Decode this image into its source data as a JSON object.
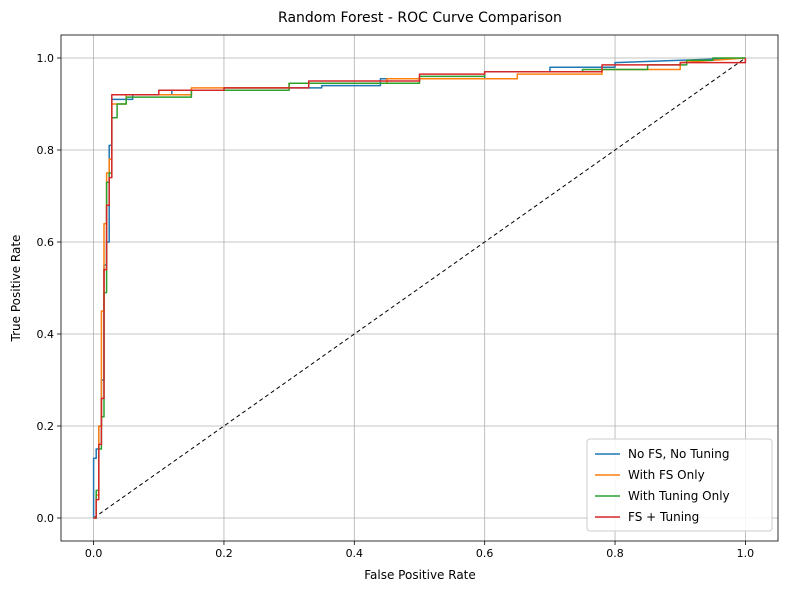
{
  "chart_data": {
    "type": "line",
    "title": "Random Forest - ROC Curve Comparison",
    "xlabel": "False Positive Rate",
    "ylabel": "True Positive Rate",
    "xlim": [
      -0.05,
      1.05
    ],
    "ylim": [
      -0.05,
      1.05
    ],
    "xticks": [
      "0.0",
      "0.2",
      "0.4",
      "0.6",
      "0.8",
      "1.0"
    ],
    "yticks": [
      "0.0",
      "0.2",
      "0.4",
      "0.6",
      "0.8",
      "1.0"
    ],
    "grid": true,
    "legend_position": "lower-right",
    "series": [
      {
        "name": "No FS, No Tuning",
        "color": "#1f77b4",
        "x": [
          0.0,
          0.0,
          0.004,
          0.004,
          0.008,
          0.008,
          0.012,
          0.012,
          0.016,
          0.016,
          0.02,
          0.02,
          0.024,
          0.024,
          0.028,
          0.028,
          0.06,
          0.06,
          0.12,
          0.12,
          0.2,
          0.2,
          0.35,
          0.35,
          0.44,
          0.44,
          0.6,
          0.6,
          0.7,
          0.7,
          0.8,
          0.8,
          1.0
        ],
        "y": [
          0.0,
          0.13,
          0.13,
          0.15,
          0.15,
          0.2,
          0.2,
          0.3,
          0.3,
          0.55,
          0.55,
          0.6,
          0.6,
          0.81,
          0.81,
          0.91,
          0.91,
          0.92,
          0.92,
          0.93,
          0.93,
          0.935,
          0.935,
          0.94,
          0.94,
          0.955,
          0.955,
          0.97,
          0.97,
          0.98,
          0.98,
          0.99,
          1.0
        ]
      },
      {
        "name": "With FS Only",
        "color": "#ff7f0e",
        "x": [
          0.0,
          0.004,
          0.004,
          0.008,
          0.008,
          0.012,
          0.012,
          0.016,
          0.016,
          0.02,
          0.02,
          0.024,
          0.024,
          0.028,
          0.028,
          0.05,
          0.05,
          0.15,
          0.15,
          0.3,
          0.3,
          0.45,
          0.45,
          0.65,
          0.65,
          0.78,
          0.78,
          0.9,
          0.9,
          1.0
        ],
        "y": [
          0.0,
          0.0,
          0.05,
          0.05,
          0.2,
          0.2,
          0.45,
          0.45,
          0.64,
          0.64,
          0.75,
          0.75,
          0.78,
          0.78,
          0.9,
          0.9,
          0.92,
          0.92,
          0.935,
          0.935,
          0.945,
          0.945,
          0.955,
          0.955,
          0.965,
          0.965,
          0.975,
          0.975,
          0.99,
          1.0
        ]
      },
      {
        "name": "With Tuning Only",
        "color": "#2ca02c",
        "x": [
          0.0,
          0.004,
          0.004,
          0.008,
          0.008,
          0.012,
          0.012,
          0.016,
          0.016,
          0.02,
          0.02,
          0.024,
          0.024,
          0.028,
          0.028,
          0.036,
          0.036,
          0.05,
          0.05,
          0.15,
          0.15,
          0.3,
          0.3,
          0.5,
          0.5,
          0.6,
          0.6,
          0.75,
          0.75,
          0.85,
          0.85,
          0.91,
          0.91,
          0.95,
          0.95,
          1.0
        ],
        "y": [
          0.0,
          0.0,
          0.06,
          0.06,
          0.15,
          0.15,
          0.22,
          0.22,
          0.49,
          0.49,
          0.73,
          0.73,
          0.75,
          0.75,
          0.87,
          0.87,
          0.9,
          0.9,
          0.915,
          0.915,
          0.93,
          0.93,
          0.945,
          0.945,
          0.96,
          0.96,
          0.97,
          0.97,
          0.975,
          0.975,
          0.985,
          0.985,
          0.995,
          0.995,
          1.0,
          1.0
        ]
      },
      {
        "name": "FS + Tuning",
        "color": "#d62728",
        "x": [
          0.0,
          0.004,
          0.004,
          0.008,
          0.008,
          0.012,
          0.012,
          0.016,
          0.016,
          0.02,
          0.02,
          0.024,
          0.024,
          0.028,
          0.028,
          0.1,
          0.1,
          0.2,
          0.2,
          0.33,
          0.33,
          0.5,
          0.5,
          0.6,
          0.6,
          0.78,
          0.78,
          0.9,
          0.9,
          1.0,
          1.0
        ],
        "y": [
          0.0,
          0.0,
          0.04,
          0.04,
          0.16,
          0.16,
          0.26,
          0.26,
          0.54,
          0.54,
          0.68,
          0.68,
          0.74,
          0.74,
          0.92,
          0.92,
          0.93,
          0.93,
          0.935,
          0.935,
          0.95,
          0.95,
          0.965,
          0.965,
          0.97,
          0.97,
          0.985,
          0.985,
          0.99,
          0.99,
          1.0
        ]
      }
    ],
    "reference_line": {
      "x": [
        0.0,
        1.0
      ],
      "y": [
        0.0,
        1.0
      ],
      "color": "#000000",
      "dashed": true
    }
  }
}
